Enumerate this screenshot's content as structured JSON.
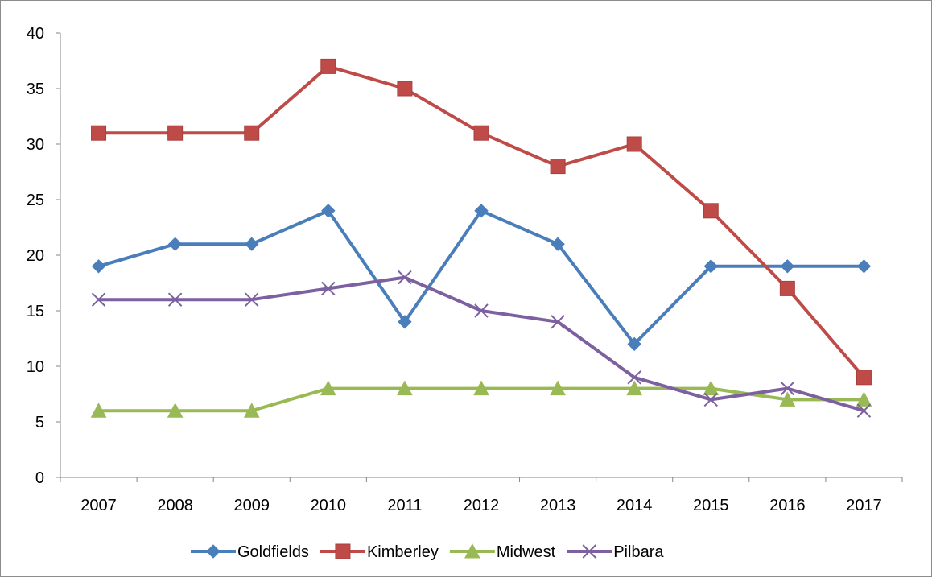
{
  "chart_data": {
    "type": "line",
    "title": "",
    "xlabel": "",
    "ylabel": "",
    "categories": [
      "2007",
      "2008",
      "2009",
      "2010",
      "2011",
      "2012",
      "2013",
      "2014",
      "2015",
      "2016",
      "2017"
    ],
    "ylim": [
      0,
      40
    ],
    "yticks": [
      0,
      5,
      10,
      15,
      20,
      25,
      30,
      35,
      40
    ],
    "grid": false,
    "legend_position": "bottom",
    "series": [
      {
        "name": "Goldfields",
        "color": "#4a7ebb",
        "marker": "diamond",
        "values": [
          19,
          21,
          21,
          24,
          14,
          24,
          21,
          12,
          19,
          19,
          19
        ]
      },
      {
        "name": "Kimberley",
        "color": "#be4b48",
        "marker": "square",
        "values": [
          31,
          31,
          31,
          37,
          35,
          31,
          28,
          30,
          24,
          17,
          9
        ]
      },
      {
        "name": "Midwest",
        "color": "#98b954",
        "marker": "triangle",
        "values": [
          6,
          6,
          6,
          8,
          8,
          8,
          8,
          8,
          8,
          7,
          7
        ]
      },
      {
        "name": "Pilbara",
        "color": "#7d60a0",
        "marker": "x",
        "values": [
          16,
          16,
          16,
          17,
          18,
          15,
          14,
          9,
          7,
          8,
          6
        ]
      }
    ]
  }
}
